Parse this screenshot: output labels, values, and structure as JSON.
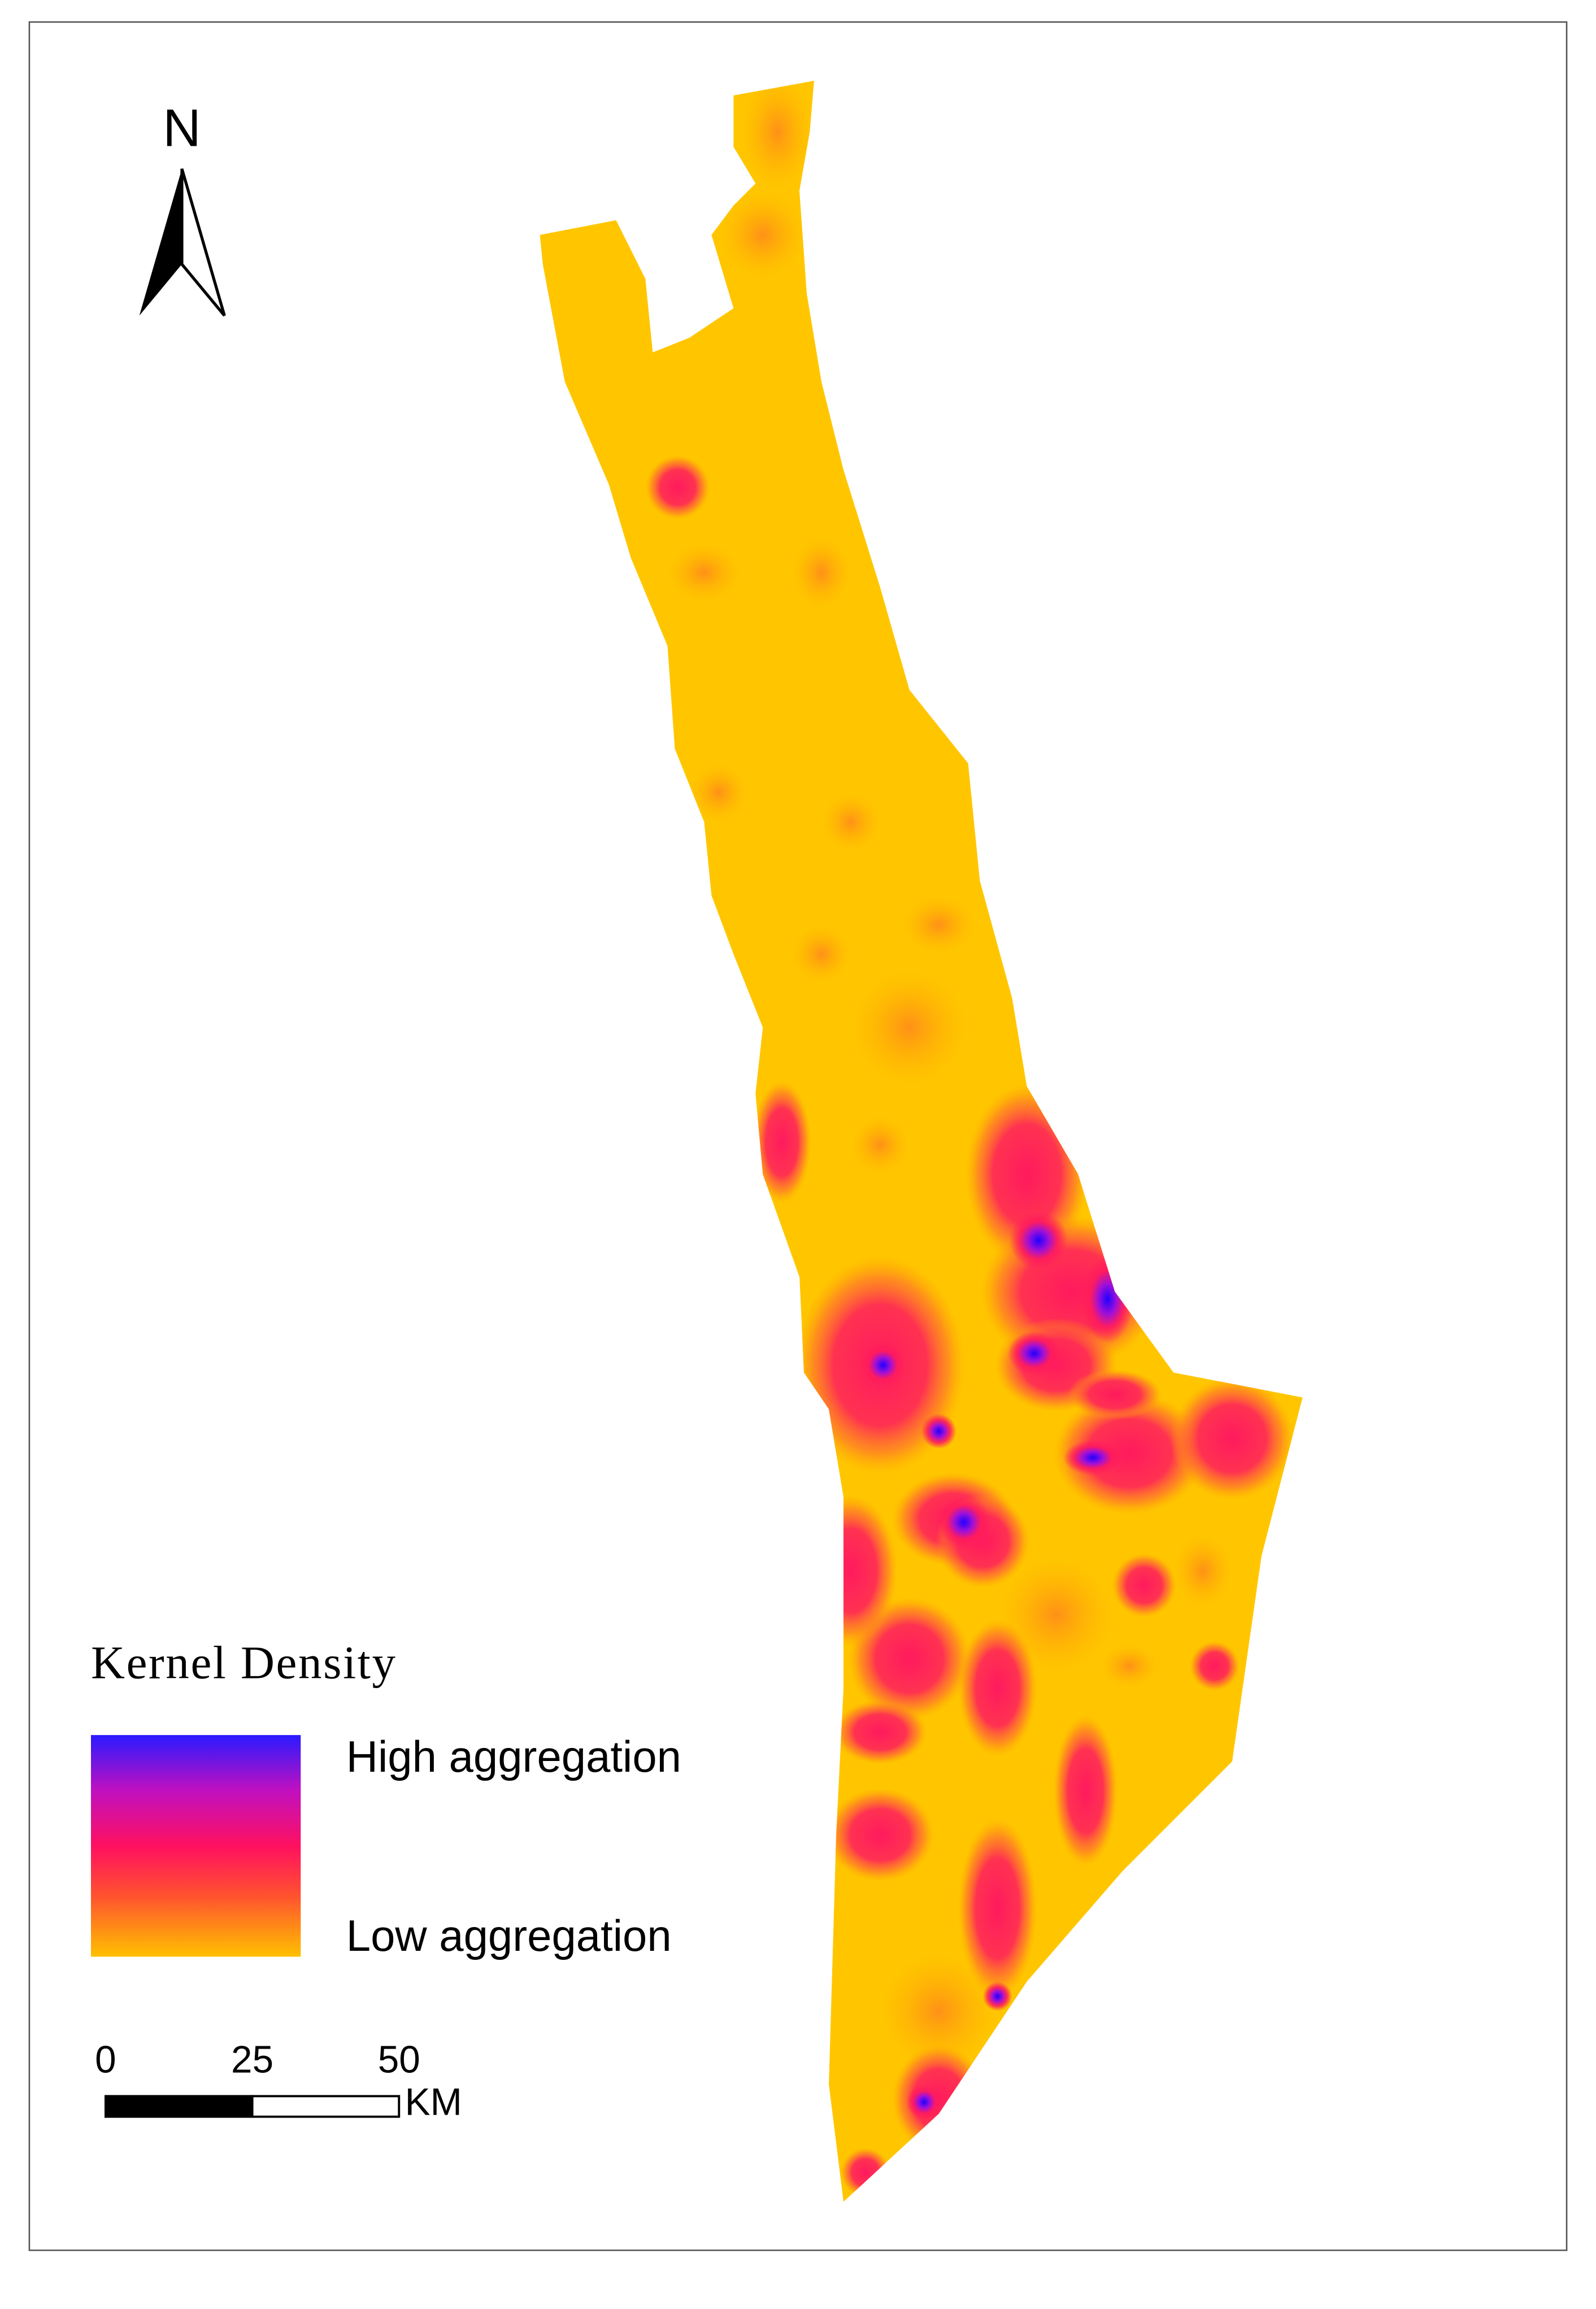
{
  "north_arrow": {
    "label": "N"
  },
  "legend": {
    "title": "Kernel Density",
    "high_label": "High aggregation",
    "low_label": "Low aggregation"
  },
  "scale_bar": {
    "ticks": [
      0,
      25,
      50
    ],
    "unit": "KM"
  }
}
